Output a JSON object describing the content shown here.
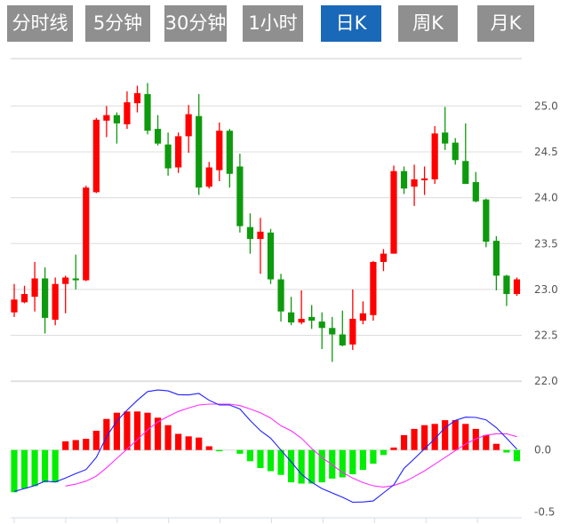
{
  "tabs": [
    {
      "label": "分时线",
      "active": false
    },
    {
      "label": "5分钟",
      "active": false
    },
    {
      "label": "30分钟",
      "active": false
    },
    {
      "label": "1小时",
      "active": false
    },
    {
      "label": "日K",
      "active": true
    },
    {
      "label": "周K",
      "active": false
    },
    {
      "label": "月K",
      "active": false
    }
  ],
  "colors": {
    "up": "#ff0000",
    "down": "#0e9a0e",
    "macd_up": "#ff0000",
    "macd_down": "#00ee00",
    "dif": "#2020ff",
    "dea": "#ff30ff",
    "active_tab": "#1a68b8",
    "tab": "#8f8f8f"
  },
  "chart_data": [
    {
      "type": "candlestick",
      "ylim": [
        22.0,
        25.5
      ],
      "y_ticks": [
        "25.0",
        "24.5",
        "24.0",
        "23.5",
        "23.0",
        "22.5",
        "22.0"
      ],
      "y_tick_values": [
        25.0,
        24.5,
        24.0,
        23.5,
        23.0,
        22.5,
        22.0
      ],
      "grid": true,
      "ohlc": [
        [
          22.75,
          23.06,
          22.7,
          22.89
        ],
        [
          22.86,
          23.04,
          22.85,
          22.95
        ],
        [
          22.92,
          23.3,
          22.76,
          23.12
        ],
        [
          23.12,
          23.24,
          22.52,
          22.69
        ],
        [
          22.67,
          23.13,
          22.61,
          23.06
        ],
        [
          23.06,
          23.15,
          22.74,
          23.13
        ],
        [
          23.12,
          23.38,
          23.0,
          23.1
        ],
        [
          23.1,
          24.13,
          23.09,
          24.11
        ],
        [
          24.06,
          24.87,
          24.05,
          24.85
        ],
        [
          24.84,
          25.0,
          24.66,
          24.9
        ],
        [
          24.9,
          24.93,
          24.59,
          24.81
        ],
        [
          24.8,
          25.16,
          24.75,
          25.04
        ],
        [
          25.03,
          25.22,
          24.93,
          25.14
        ],
        [
          25.13,
          25.25,
          24.69,
          24.73
        ],
        [
          24.75,
          24.9,
          24.57,
          24.59
        ],
        [
          24.58,
          24.71,
          24.24,
          24.32
        ],
        [
          24.33,
          24.71,
          24.27,
          24.67
        ],
        [
          24.67,
          25.01,
          24.49,
          24.91
        ],
        [
          24.89,
          25.13,
          24.03,
          24.11
        ],
        [
          24.12,
          24.39,
          24.1,
          24.33
        ],
        [
          24.3,
          24.82,
          24.18,
          24.73
        ],
        [
          24.73,
          24.75,
          24.11,
          24.26
        ],
        [
          24.34,
          24.48,
          23.62,
          23.69
        ],
        [
          23.68,
          23.83,
          23.39,
          23.55
        ],
        [
          23.55,
          23.78,
          23.17,
          23.63
        ],
        [
          23.62,
          23.66,
          23.06,
          23.11
        ],
        [
          23.11,
          23.17,
          22.65,
          22.76
        ],
        [
          22.75,
          22.92,
          22.61,
          22.64
        ],
        [
          22.64,
          22.99,
          22.62,
          22.68
        ],
        [
          22.7,
          22.83,
          22.57,
          22.66
        ],
        [
          22.65,
          22.75,
          22.35,
          22.58
        ],
        [
          22.58,
          22.7,
          22.21,
          22.51
        ],
        [
          22.51,
          22.77,
          22.38,
          22.39
        ],
        [
          22.4,
          23.0,
          22.34,
          22.68
        ],
        [
          22.66,
          22.87,
          22.62,
          22.74
        ],
        [
          22.72,
          23.31,
          22.66,
          23.3
        ],
        [
          23.3,
          23.44,
          23.2,
          23.39
        ],
        [
          23.39,
          24.35,
          23.39,
          24.29
        ],
        [
          24.29,
          24.34,
          24.04,
          24.1
        ],
        [
          24.12,
          24.36,
          23.91,
          24.2
        ],
        [
          24.19,
          24.34,
          24.03,
          24.21
        ],
        [
          24.2,
          24.78,
          24.15,
          24.7
        ],
        [
          24.71,
          24.99,
          24.52,
          24.59
        ],
        [
          24.6,
          24.65,
          24.36,
          24.41
        ],
        [
          24.4,
          24.81,
          24.15,
          24.15
        ],
        [
          24.17,
          24.28,
          23.95,
          23.96
        ],
        [
          23.98,
          23.99,
          23.46,
          23.52
        ],
        [
          23.53,
          23.58,
          22.99,
          23.15
        ],
        [
          23.15,
          23.16,
          22.82,
          22.95
        ],
        [
          22.95,
          23.13,
          22.93,
          23.11
        ]
      ]
    },
    {
      "type": "macd",
      "ylim": [
        -0.5,
        0.55
      ],
      "y_ticks": [
        "0.0",
        "-0.5"
      ],
      "y_tick_values": [
        0.0,
        -0.5
      ],
      "macd": [
        -0.34,
        -0.31,
        -0.29,
        -0.26,
        -0.26,
        0.07,
        0.08,
        0.09,
        0.155,
        0.25,
        0.3,
        0.31,
        0.31,
        0.3,
        0.26,
        0.2,
        0.13,
        0.11,
        0.1,
        0.03,
        -0.01,
        0,
        -0.03,
        -0.09,
        -0.145,
        -0.17,
        -0.2,
        -0.26,
        -0.27,
        -0.27,
        -0.26,
        -0.23,
        -0.22,
        -0.195,
        -0.16,
        -0.11,
        -0.04,
        0.02,
        0.12,
        0.17,
        0.2,
        0.21,
        0.24,
        0.24,
        0.21,
        0.17,
        0.12,
        0.05,
        -0.02,
        -0.09
      ],
      "dif": [
        -0.333,
        -0.31,
        -0.286,
        -0.25,
        -0.257,
        -0.226,
        -0.19,
        -0.157,
        -0.06,
        0.107,
        0.233,
        0.32,
        0.4,
        0.47,
        0.483,
        0.476,
        0.445,
        0.443,
        0.455,
        0.4,
        0.362,
        0.362,
        0.33,
        0.238,
        0.155,
        0.095,
        0.0,
        -0.095,
        -0.195,
        -0.26,
        -0.31,
        -0.345,
        -0.38,
        -0.42,
        -0.418,
        -0.41,
        -0.345,
        -0.28,
        -0.148,
        -0.07,
        0.01,
        0.09,
        0.18,
        0.238,
        0.264,
        0.262,
        0.243,
        0.18,
        0.095,
        0.007
      ],
      "dea": [
        null,
        null,
        null,
        null,
        null,
        -0.29,
        -0.274,
        -0.25,
        -0.21,
        -0.143,
        -0.067,
        0.007,
        0.083,
        0.162,
        0.226,
        0.27,
        0.31,
        0.338,
        0.362,
        0.369,
        0.369,
        0.369,
        0.357,
        0.33,
        0.3,
        0.257,
        0.195,
        0.155,
        0.095,
        0.012,
        -0.06,
        -0.12,
        -0.18,
        -0.226,
        -0.262,
        -0.288,
        -0.298,
        -0.286,
        -0.257,
        -0.214,
        -0.167,
        -0.114,
        -0.06,
        -0.005,
        0.048,
        0.09,
        0.12,
        0.131,
        0.131,
        0.107
      ]
    }
  ]
}
